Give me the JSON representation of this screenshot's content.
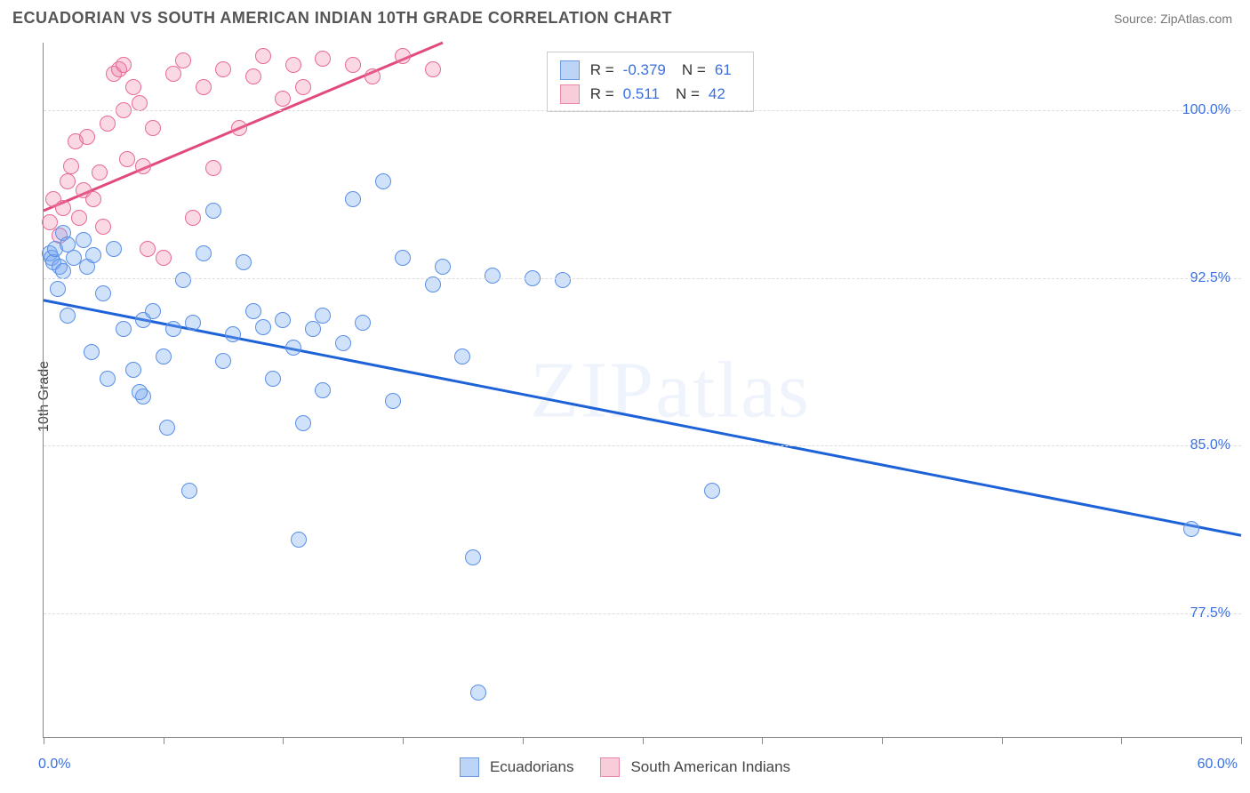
{
  "header": {
    "title": "ECUADORIAN VS SOUTH AMERICAN INDIAN 10TH GRADE CORRELATION CHART",
    "source_label": "Source:",
    "source_name": "ZipAtlas.com"
  },
  "axes": {
    "ylabel": "10th Grade",
    "x_domain": [
      0,
      60
    ],
    "y_domain": [
      72,
      103
    ],
    "x_min_label": "0.0%",
    "x_max_label": "60.0%",
    "x_ticks_pct": [
      0,
      6,
      12,
      18,
      24,
      30,
      36,
      42,
      48,
      54,
      60
    ],
    "y_gridlines": [
      {
        "v": 100.0,
        "label": "100.0%"
      },
      {
        "v": 92.5,
        "label": "92.5%"
      },
      {
        "v": 85.0,
        "label": "85.0%"
      },
      {
        "v": 77.5,
        "label": "77.5%"
      }
    ]
  },
  "series": {
    "a": {
      "label": "Ecuadorians",
      "fill": "rgba(120,170,240,0.35)",
      "stroke": "#5a8fe6",
      "swatch_fill": "#bcd4f5",
      "swatch_border": "#6a9be0",
      "trend_color": "#1e62d8",
      "trend": {
        "x1": 0,
        "y1": 91.5,
        "x2": 60,
        "y2": 81.0
      },
      "r_value": "-0.379",
      "n_value": "61",
      "marker_radius": 9,
      "points": [
        [
          0.3,
          93.6
        ],
        [
          0.4,
          93.4
        ],
        [
          0.5,
          93.2
        ],
        [
          0.6,
          93.8
        ],
        [
          0.8,
          93.0
        ],
        [
          1.0,
          94.5
        ],
        [
          1.0,
          92.8
        ],
        [
          1.2,
          94.0
        ],
        [
          0.7,
          92.0
        ],
        [
          1.5,
          93.4
        ],
        [
          2.0,
          94.2
        ],
        [
          1.2,
          90.8
        ],
        [
          2.2,
          93.0
        ],
        [
          2.5,
          93.5
        ],
        [
          3.0,
          91.8
        ],
        [
          3.5,
          93.8
        ],
        [
          4.0,
          90.2
        ],
        [
          4.5,
          88.4
        ],
        [
          5.0,
          90.6
        ],
        [
          5.0,
          87.2
        ],
        [
          5.5,
          91.0
        ],
        [
          6.0,
          89.0
        ],
        [
          6.5,
          90.2
        ],
        [
          7.0,
          92.4
        ],
        [
          7.5,
          90.5
        ],
        [
          8.0,
          93.6
        ],
        [
          8.5,
          95.5
        ],
        [
          9.0,
          88.8
        ],
        [
          9.5,
          90.0
        ],
        [
          10.0,
          93.2
        ],
        [
          10.5,
          91.0
        ],
        [
          11.0,
          90.3
        ],
        [
          11.5,
          88.0
        ],
        [
          12.0,
          90.6
        ],
        [
          12.5,
          89.4
        ],
        [
          13.0,
          86.0
        ],
        [
          13.5,
          90.2
        ],
        [
          14.0,
          90.8
        ],
        [
          14.0,
          87.5
        ],
        [
          15.0,
          89.6
        ],
        [
          4.8,
          87.4
        ],
        [
          6.2,
          85.8
        ],
        [
          7.3,
          83.0
        ],
        [
          2.4,
          89.2
        ],
        [
          3.2,
          88.0
        ],
        [
          15.5,
          96.0
        ],
        [
          16.0,
          90.5
        ],
        [
          17.0,
          96.8
        ],
        [
          18.0,
          93.4
        ],
        [
          17.5,
          87.0
        ],
        [
          19.5,
          92.2
        ],
        [
          20.0,
          93.0
        ],
        [
          21.0,
          89.0
        ],
        [
          21.5,
          80.0
        ],
        [
          21.8,
          74.0
        ],
        [
          22.5,
          92.6
        ],
        [
          24.5,
          92.5
        ],
        [
          26.0,
          92.4
        ],
        [
          33.5,
          83.0
        ],
        [
          57.5,
          81.3
        ],
        [
          12.8,
          80.8
        ]
      ]
    },
    "b": {
      "label": "South American Indians",
      "fill": "rgba(240,130,170,0.30)",
      "stroke": "#e86a93",
      "swatch_fill": "#f7cdd9",
      "swatch_border": "#e986a6",
      "trend_color": "#e14a7a",
      "trend": {
        "x1": 0,
        "y1": 95.5,
        "x2": 20,
        "y2": 103.0
      },
      "r_value": "0.511",
      "n_value": "42",
      "marker_radius": 9,
      "points": [
        [
          0.3,
          95.0
        ],
        [
          0.5,
          96.0
        ],
        [
          0.8,
          94.4
        ],
        [
          1.0,
          95.6
        ],
        [
          1.2,
          96.8
        ],
        [
          1.4,
          97.5
        ],
        [
          1.6,
          98.6
        ],
        [
          1.8,
          95.2
        ],
        [
          2.0,
          96.4
        ],
        [
          2.2,
          98.8
        ],
        [
          2.5,
          96.0
        ],
        [
          2.8,
          97.2
        ],
        [
          3.0,
          94.8
        ],
        [
          3.2,
          99.4
        ],
        [
          3.5,
          101.6
        ],
        [
          3.8,
          101.8
        ],
        [
          4.0,
          100.0
        ],
        [
          4.0,
          102.0
        ],
        [
          4.2,
          97.8
        ],
        [
          4.5,
          101.0
        ],
        [
          4.8,
          100.3
        ],
        [
          5.0,
          97.5
        ],
        [
          5.2,
          93.8
        ],
        [
          5.5,
          99.2
        ],
        [
          6.0,
          93.4
        ],
        [
          6.5,
          101.6
        ],
        [
          7.0,
          102.2
        ],
        [
          7.5,
          95.2
        ],
        [
          8.0,
          101.0
        ],
        [
          8.5,
          97.4
        ],
        [
          9.0,
          101.8
        ],
        [
          9.8,
          99.2
        ],
        [
          10.5,
          101.5
        ],
        [
          11.0,
          102.4
        ],
        [
          12.0,
          100.5
        ],
        [
          12.5,
          102.0
        ],
        [
          13.0,
          101.0
        ],
        [
          14.0,
          102.3
        ],
        [
          15.5,
          102.0
        ],
        [
          16.5,
          101.5
        ],
        [
          18.0,
          102.4
        ],
        [
          19.5,
          101.8
        ]
      ]
    }
  },
  "stats_box": {
    "r_label": "R =",
    "n_label": "N ="
  },
  "watermark": "ZIPatlas",
  "legend": {
    "items": [
      "a",
      "b"
    ]
  },
  "chart_style": {
    "background_color": "#ffffff",
    "axis_color": "#888888",
    "grid_dash_color": "#dddddd",
    "tick_label_color": "#3b6fe0",
    "title_color": "#555555",
    "font_family": "Arial, Helvetica, sans-serif"
  }
}
